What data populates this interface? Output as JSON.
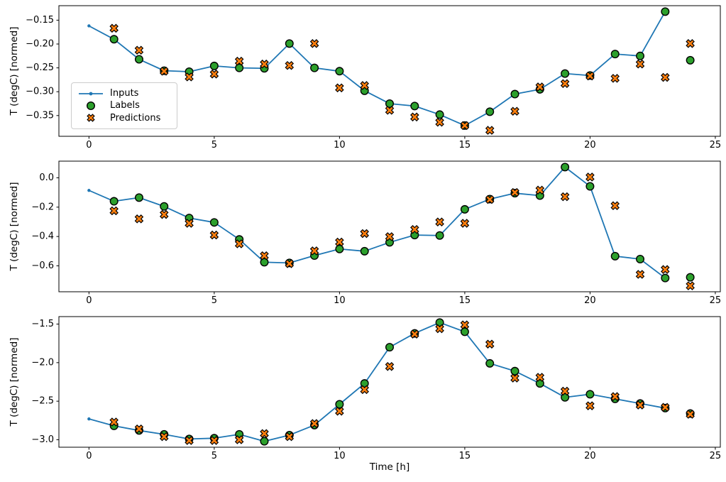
{
  "figure": {
    "background": "#ffffff"
  },
  "colors": {
    "inputs": "#1f77b4",
    "labels": "#2ca02c",
    "predictions": "#ff7f0e",
    "marker_edge": "#000000",
    "frame": "#000000"
  },
  "legend": {
    "entries": [
      {
        "name": "inputs",
        "label": "Inputs"
      },
      {
        "name": "labels",
        "label": "Labels"
      },
      {
        "name": "predictions",
        "label": "Predictions"
      }
    ]
  },
  "axes": {
    "xlabel": "Time [h]",
    "ylabel": "T (degC) [normed]",
    "xlim": [
      -1.2,
      25.2
    ],
    "xticks": [
      0,
      5,
      10,
      15,
      20,
      25
    ],
    "xtick_labels": [
      "0",
      "5",
      "10",
      "15",
      "20",
      "25"
    ]
  },
  "chart_data": [
    {
      "type": "line",
      "title": "",
      "ylabel": "T (degC) [normed]",
      "ylim": [
        -0.3935,
        -0.1196
      ],
      "yticks": [
        -0.15,
        -0.2,
        -0.25,
        -0.3,
        -0.35
      ],
      "ytick_labels": [
        "−0.15",
        "−0.20",
        "−0.25",
        "−0.30",
        "−0.35"
      ],
      "series": [
        {
          "name": "Inputs",
          "style": "line-with-dots",
          "x": [
            0,
            1,
            2,
            3,
            4,
            5,
            6,
            7,
            8,
            9,
            10,
            11,
            12,
            13,
            14,
            15,
            16,
            17,
            18,
            19,
            20,
            21,
            22,
            23
          ],
          "y": [
            -0.162,
            -0.19,
            -0.232,
            -0.256,
            -0.258,
            -0.246,
            -0.25,
            -0.251,
            -0.199,
            -0.25,
            -0.257,
            -0.298,
            -0.325,
            -0.33,
            -0.348,
            -0.371,
            -0.342,
            -0.305,
            -0.295,
            -0.262,
            -0.266,
            -0.221,
            -0.225,
            -0.132
          ]
        },
        {
          "name": "Labels",
          "style": "circle",
          "x": [
            1,
            2,
            3,
            4,
            5,
            6,
            7,
            8,
            9,
            10,
            11,
            12,
            13,
            14,
            15,
            16,
            17,
            18,
            19,
            20,
            21,
            22,
            23,
            24
          ],
          "y": [
            -0.19,
            -0.232,
            -0.256,
            -0.258,
            -0.246,
            -0.25,
            -0.251,
            -0.199,
            -0.25,
            -0.257,
            -0.298,
            -0.325,
            -0.33,
            -0.348,
            -0.371,
            -0.342,
            -0.305,
            -0.295,
            -0.262,
            -0.266,
            -0.221,
            -0.225,
            -0.132,
            -0.234
          ]
        },
        {
          "name": "Predictions",
          "style": "x-filled",
          "x": [
            1,
            2,
            3,
            4,
            5,
            6,
            7,
            8,
            9,
            10,
            11,
            12,
            13,
            14,
            15,
            16,
            17,
            18,
            19,
            20,
            21,
            22,
            23,
            24
          ],
          "y": [
            -0.167,
            -0.213,
            -0.257,
            -0.269,
            -0.263,
            -0.236,
            -0.242,
            -0.245,
            -0.199,
            -0.292,
            -0.287,
            -0.339,
            -0.353,
            -0.364,
            -0.371,
            -0.381,
            -0.341,
            -0.29,
            -0.283,
            -0.267,
            -0.272,
            -0.242,
            -0.27,
            -0.199
          ]
        }
      ]
    },
    {
      "type": "line",
      "title": "",
      "ylabel": "T (degC) [normed]",
      "ylim": [
        -0.7765,
        0.1135
      ],
      "yticks": [
        0.0,
        -0.2,
        -0.4,
        -0.6
      ],
      "ytick_labels": [
        "0.0",
        "−0.2",
        "−0.4",
        "−0.6"
      ],
      "series": [
        {
          "name": "Inputs",
          "style": "line-with-dots",
          "x": [
            0,
            1,
            2,
            3,
            4,
            5,
            6,
            7,
            8,
            9,
            10,
            11,
            12,
            13,
            14,
            15,
            16,
            17,
            18,
            19,
            20,
            21,
            22,
            23
          ],
          "y": [
            -0.086,
            -0.16,
            -0.135,
            -0.195,
            -0.274,
            -0.304,
            -0.42,
            -0.575,
            -0.58,
            -0.53,
            -0.485,
            -0.5,
            -0.44,
            -0.39,
            -0.393,
            -0.215,
            -0.145,
            -0.105,
            -0.121,
            0.073,
            -0.058,
            -0.534,
            -0.554,
            -0.683
          ]
        },
        {
          "name": "Labels",
          "style": "circle",
          "x": [
            1,
            2,
            3,
            4,
            5,
            6,
            7,
            8,
            9,
            10,
            11,
            12,
            13,
            14,
            15,
            16,
            17,
            18,
            19,
            20,
            21,
            22,
            23,
            24
          ],
          "y": [
            -0.16,
            -0.135,
            -0.195,
            -0.274,
            -0.304,
            -0.42,
            -0.575,
            -0.58,
            -0.53,
            -0.485,
            -0.5,
            -0.44,
            -0.39,
            -0.393,
            -0.215,
            -0.145,
            -0.105,
            -0.121,
            0.073,
            -0.058,
            -0.534,
            -0.554,
            -0.683,
            -0.678
          ]
        },
        {
          "name": "Predictions",
          "style": "x-filled",
          "x": [
            1,
            2,
            3,
            4,
            5,
            6,
            7,
            8,
            9,
            10,
            11,
            12,
            13,
            14,
            15,
            16,
            17,
            18,
            19,
            20,
            21,
            22,
            23,
            24
          ],
          "y": [
            -0.225,
            -0.28,
            -0.25,
            -0.31,
            -0.39,
            -0.45,
            -0.531,
            -0.585,
            -0.498,
            -0.438,
            -0.38,
            -0.401,
            -0.352,
            -0.301,
            -0.31,
            -0.148,
            -0.1,
            -0.084,
            -0.129,
            0.005,
            -0.19,
            -0.658,
            -0.625,
            -0.736
          ]
        }
      ]
    },
    {
      "type": "line",
      "title": "",
      "ylabel": "T (degC) [normed]",
      "ylim": [
        -3.097,
        -1.403
      ],
      "yticks": [
        -1.5,
        -2.0,
        -2.5,
        -3.0
      ],
      "ytick_labels": [
        "−1.5",
        "−2.0",
        "−2.5",
        "−3.0"
      ],
      "series": [
        {
          "name": "Inputs",
          "style": "line-with-dots",
          "x": [
            0,
            1,
            2,
            3,
            4,
            5,
            6,
            7,
            8,
            9,
            10,
            11,
            12,
            13,
            14,
            15,
            16,
            17,
            18,
            19,
            20,
            21,
            22,
            23
          ],
          "y": [
            -2.73,
            -2.82,
            -2.88,
            -2.93,
            -2.99,
            -2.98,
            -2.93,
            -3.02,
            -2.94,
            -2.81,
            -2.54,
            -2.27,
            -1.8,
            -1.62,
            -1.48,
            -1.6,
            -2.01,
            -2.11,
            -2.27,
            -2.45,
            -2.41,
            -2.47,
            -2.53,
            -2.59
          ]
        },
        {
          "name": "Labels",
          "style": "circle",
          "x": [
            1,
            2,
            3,
            4,
            5,
            6,
            7,
            8,
            9,
            10,
            11,
            12,
            13,
            14,
            15,
            16,
            17,
            18,
            19,
            20,
            21,
            22,
            23,
            24
          ],
          "y": [
            -2.82,
            -2.88,
            -2.93,
            -2.99,
            -2.98,
            -2.93,
            -3.02,
            -2.94,
            -2.81,
            -2.54,
            -2.27,
            -1.8,
            -1.62,
            -1.48,
            -1.6,
            -2.01,
            -2.11,
            -2.27,
            -2.45,
            -2.41,
            -2.47,
            -2.53,
            -2.59,
            -2.66
          ]
        },
        {
          "name": "Predictions",
          "style": "x-filled",
          "x": [
            1,
            2,
            3,
            4,
            5,
            6,
            7,
            8,
            9,
            10,
            11,
            12,
            13,
            14,
            15,
            16,
            17,
            18,
            19,
            20,
            21,
            22,
            23,
            24
          ],
          "y": [
            -2.77,
            -2.86,
            -2.96,
            -3.01,
            -3.01,
            -3.0,
            -2.92,
            -2.96,
            -2.79,
            -2.63,
            -2.35,
            -2.05,
            -1.63,
            -1.56,
            -1.51,
            -1.76,
            -2.2,
            -2.19,
            -2.37,
            -2.56,
            -2.44,
            -2.55,
            -2.58,
            -2.67
          ]
        }
      ]
    }
  ]
}
